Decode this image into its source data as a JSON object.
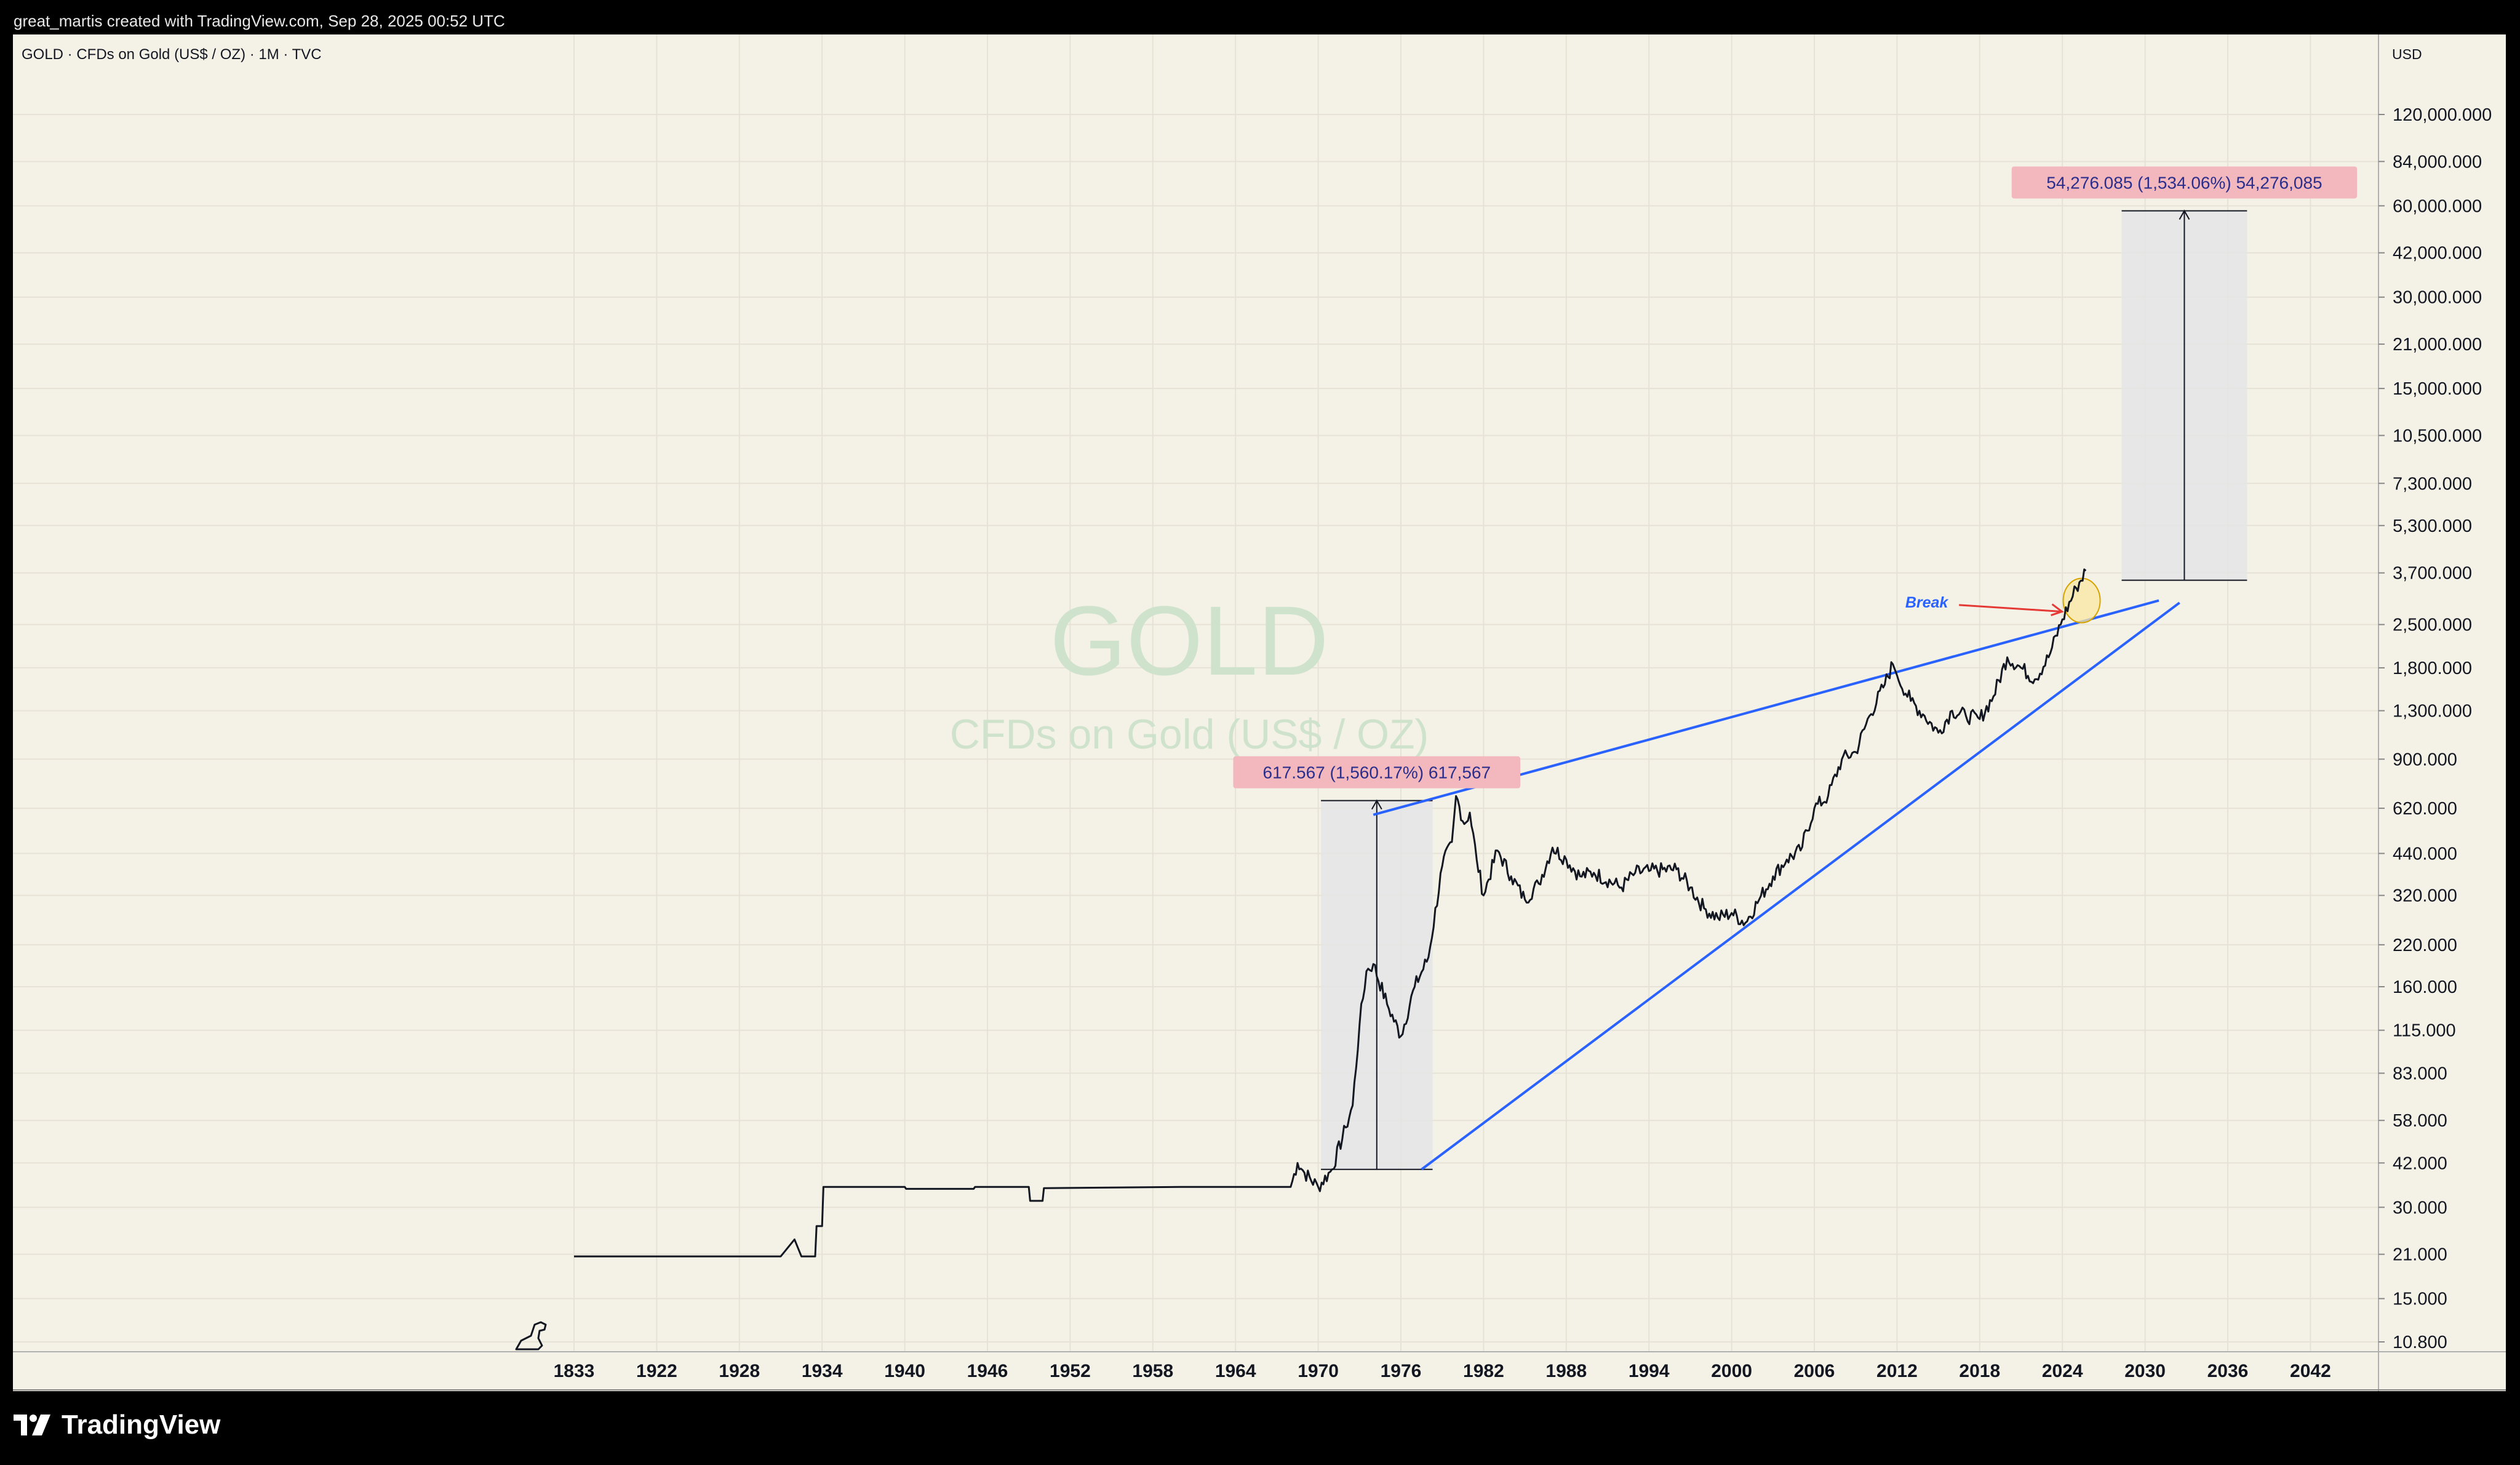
{
  "caption": "great_martis created with TradingView.com, Sep 28, 2025 00:52 UTC",
  "symbol_header": "GOLD · CFDs on Gold (US$ / OZ) · 1M · TVC",
  "watermark": {
    "title": "GOLD",
    "subtitle": "CFDs on Gold (US$ / OZ)"
  },
  "currency_label": "USD",
  "brand": "TradingView",
  "annotations": {
    "measure_1970s": "617.567 (1,560.17%) 617,567",
    "measure_projection": "54,276.085 (1,534.06%) 54,276,085",
    "break_label": "Break"
  },
  "colors": {
    "background": "#f4f1e6",
    "price_line": "#131722",
    "trendline": "#2962ff",
    "label_box": "#f2b8bd",
    "label_text": "#2a2e8c",
    "range_fill": "#e4e6e6",
    "break_arrow": "#e53935",
    "highlight_circle": "#fbe7a1"
  },
  "chart_data": {
    "type": "line",
    "title": "GOLD · CFDs on Gold (US$ / OZ) · 1M · TVC",
    "ylabel": "USD",
    "y_scale": "log",
    "ylim": [
      10.0,
      150000.0
    ],
    "x_tick_labels": [
      "1833",
      "1922",
      "1928",
      "1934",
      "1940",
      "1946",
      "1952",
      "1958",
      "1964",
      "1970",
      "1976",
      "1982",
      "1988",
      "1994",
      "2000",
      "2006",
      "2012",
      "2018",
      "2024",
      "2030",
      "2036",
      "2042"
    ],
    "y_tick_labels": [
      "120,000.000",
      "84,000.000",
      "60,000.000",
      "42,000.000",
      "30,000.000",
      "21,000.000",
      "15,000.000",
      "10,500.000",
      "7,300.000",
      "5,300.000",
      "3,700.000",
      "2,500.000",
      "1,800.000",
      "1,300.000",
      "900.000",
      "620.000",
      "440.000",
      "320.000",
      "220.000",
      "160.000",
      "115.000",
      "83.000",
      "58.000",
      "42.000",
      "30.000",
      "21.000",
      "15.000",
      "10.800"
    ],
    "y_tick_values": [
      120000,
      84000,
      60000,
      42000,
      30000,
      21000,
      15000,
      10500,
      7300,
      5300,
      3700,
      2500,
      1800,
      1300,
      900,
      620,
      440,
      320,
      220,
      160,
      115,
      83,
      58,
      42,
      30,
      21,
      15,
      10.8
    ],
    "series": [
      {
        "values": [
          {
            "x": 1916,
            "y": 20.67
          },
          {
            "x": 1931,
            "y": 20.67
          },
          {
            "x": 1932,
            "y": 23.5
          },
          {
            "x": 1932.5,
            "y": 20.67
          },
          {
            "x": 1933.5,
            "y": 20.67
          },
          {
            "x": 1933.6,
            "y": 26
          },
          {
            "x": 1934,
            "y": 26
          },
          {
            "x": 1934.1,
            "y": 35
          },
          {
            "x": 1940,
            "y": 35
          },
          {
            "x": 1940.1,
            "y": 34.5
          },
          {
            "x": 1945,
            "y": 34.5
          },
          {
            "x": 1945.1,
            "y": 35
          },
          {
            "x": 1949,
            "y": 35
          },
          {
            "x": 1949.1,
            "y": 31.5
          },
          {
            "x": 1950,
            "y": 31.5
          },
          {
            "x": 1950.1,
            "y": 34.7
          },
          {
            "x": 1960,
            "y": 35
          },
          {
            "x": 1968,
            "y": 35
          },
          {
            "x": 1968.5,
            "y": 42
          },
          {
            "x": 1969,
            "y": 39
          },
          {
            "x": 1970,
            "y": 35
          },
          {
            "x": 1971,
            "y": 40
          },
          {
            "x": 1972,
            "y": 55
          },
          {
            "x": 1972.5,
            "y": 65
          },
          {
            "x": 1973,
            "y": 120
          },
          {
            "x": 1973.5,
            "y": 180
          },
          {
            "x": 1974,
            "y": 190
          },
          {
            "x": 1975,
            "y": 140
          },
          {
            "x": 1976,
            "y": 110
          },
          {
            "x": 1977,
            "y": 160
          },
          {
            "x": 1978,
            "y": 200
          },
          {
            "x": 1979,
            "y": 400
          },
          {
            "x": 1979.7,
            "y": 480
          },
          {
            "x": 1980,
            "y": 680
          },
          {
            "x": 1980.6,
            "y": 550
          },
          {
            "x": 1981,
            "y": 600
          },
          {
            "x": 1981.5,
            "y": 420
          },
          {
            "x": 1982,
            "y": 320
          },
          {
            "x": 1983,
            "y": 450
          },
          {
            "x": 1984,
            "y": 370
          },
          {
            "x": 1985,
            "y": 310
          },
          {
            "x": 1986,
            "y": 350
          },
          {
            "x": 1987,
            "y": 460
          },
          {
            "x": 1988,
            "y": 420
          },
          {
            "x": 1989,
            "y": 370
          },
          {
            "x": 1990,
            "y": 380
          },
          {
            "x": 1992,
            "y": 340
          },
          {
            "x": 1993,
            "y": 380
          },
          {
            "x": 1994,
            "y": 385
          },
          {
            "x": 1996,
            "y": 390
          },
          {
            "x": 1997,
            "y": 340
          },
          {
            "x": 1998,
            "y": 290
          },
          {
            "x": 1999,
            "y": 270
          },
          {
            "x": 2000,
            "y": 280
          },
          {
            "x": 2001,
            "y": 260
          },
          {
            "x": 2002,
            "y": 310
          },
          {
            "x": 2003,
            "y": 370
          },
          {
            "x": 2004,
            "y": 420
          },
          {
            "x": 2005,
            "y": 450
          },
          {
            "x": 2006,
            "y": 620
          },
          {
            "x": 2007,
            "y": 680
          },
          {
            "x": 2008,
            "y": 900
          },
          {
            "x": 2009,
            "y": 950
          },
          {
            "x": 2010,
            "y": 1250
          },
          {
            "x": 2011,
            "y": 1550
          },
          {
            "x": 2011.7,
            "y": 1850
          },
          {
            "x": 2012,
            "y": 1700
          },
          {
            "x": 2013,
            "y": 1400
          },
          {
            "x": 2014,
            "y": 1250
          },
          {
            "x": 2015,
            "y": 1100
          },
          {
            "x": 2016,
            "y": 1300
          },
          {
            "x": 2017,
            "y": 1250
          },
          {
            "x": 2018,
            "y": 1220
          },
          {
            "x": 2019,
            "y": 1450
          },
          {
            "x": 2020,
            "y": 1950
          },
          {
            "x": 2021,
            "y": 1800
          },
          {
            "x": 2022,
            "y": 1650
          },
          {
            "x": 2023,
            "y": 1950
          },
          {
            "x": 2024,
            "y": 2600
          },
          {
            "x": 2025,
            "y": 3300
          },
          {
            "x": 2025.7,
            "y": 3760
          }
        ]
      }
    ],
    "trendlines": [
      {
        "x": [
          1974,
          2031
        ],
        "y": [
          590,
          3000
        ]
      },
      {
        "x": [
          1977.5,
          2032.5
        ],
        "y": [
          40,
          2950
        ]
      }
    ],
    "measure_ranges": [
      {
        "x": [
          1970.2,
          1978.3
        ],
        "y": [
          40,
          657
        ],
        "label": "617.567 (1,560.17%) 617,567"
      },
      {
        "x": [
          2028.3,
          2037.4
        ],
        "y": [
          3500,
          57776
        ],
        "label": "54,276.085 (1,534.06%) 54,276,085"
      }
    ]
  }
}
